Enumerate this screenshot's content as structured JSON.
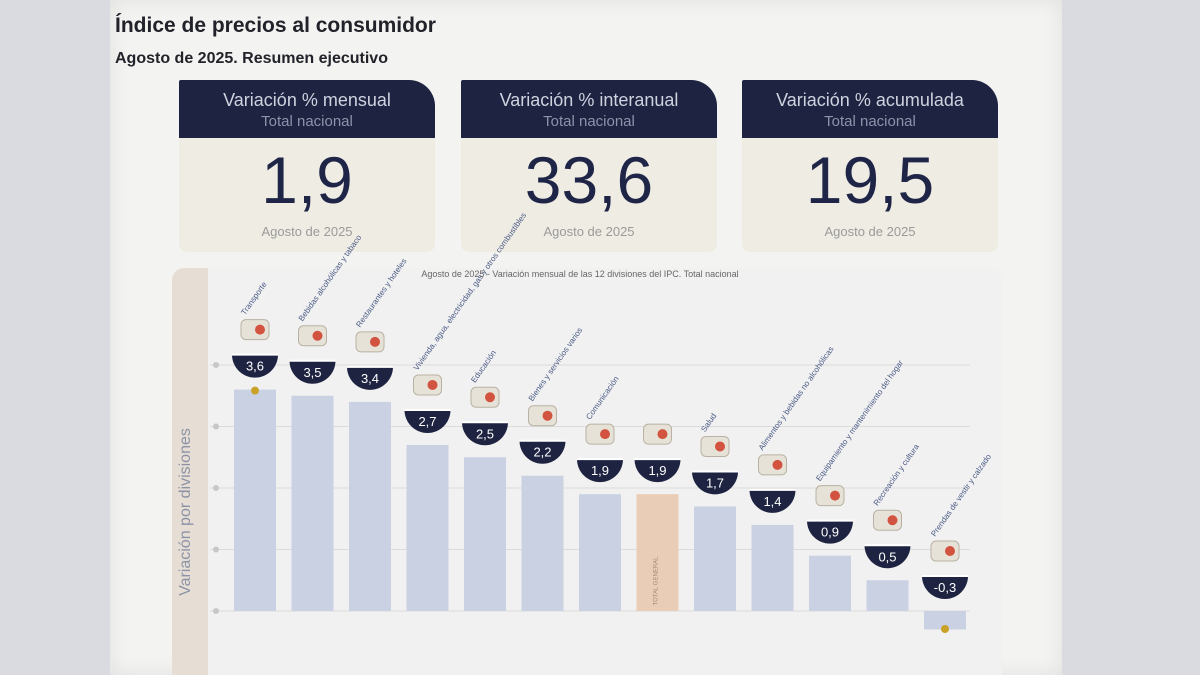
{
  "header": {
    "title": "Índice de precios al consumidor",
    "subtitle": "Agosto de 2025. Resumen ejecutivo"
  },
  "cards": [
    {
      "label": "Variación % mensual",
      "sublabel": "Total nacional",
      "value": "1,9",
      "date": "Agosto de 2025"
    },
    {
      "label": "Variación % interanual",
      "sublabel": "Total nacional",
      "value": "33,6",
      "date": "Agosto de 2025"
    },
    {
      "label": "Variación % acumulada",
      "sublabel": "Total nacional",
      "value": "19,5",
      "date": "Agosto de 2025"
    }
  ],
  "colors": {
    "navy": "#1d2340",
    "bar": "#c9d1e2",
    "highlight_bar": "#e9cdb7",
    "marker": "#c9a227"
  },
  "chart_data": {
    "type": "bar",
    "title": "Agosto de 2025 - Variación mensual de las 12 divisiones del IPC. Total nacional",
    "ylabel": "Variación por divisiones",
    "ylim": [
      -0.5,
      4
    ],
    "yticks": [
      0,
      1,
      2,
      3,
      4
    ],
    "grid": true,
    "categories": [
      "Transporte",
      "Bebidas alcohólicas y tabaco",
      "Restaurantes y hoteles",
      "Vivienda, agua, electricidad, gas y otros combustibles",
      "Educación",
      "Bienes y servicios varios",
      "Comunicación",
      "TOTAL GENERAL",
      "Salud",
      "Alimentos y bebidas no alcohólicas",
      "Equipamiento y mantenimiento del hogar",
      "Recreación y cultura",
      "Prendas de vestir y calzado"
    ],
    "values": [
      3.6,
      3.5,
      3.4,
      2.7,
      2.5,
      2.2,
      1.9,
      1.9,
      1.7,
      1.4,
      0.9,
      0.5,
      -0.3
    ],
    "value_labels": [
      "3,6",
      "3,5",
      "3,4",
      "2,7",
      "2,5",
      "2,2",
      "1,9",
      "1,9",
      "1,7",
      "1,4",
      "0,9",
      "0,5",
      "-0,3"
    ],
    "highlight_index": 7,
    "markers": [
      0,
      12
    ],
    "icons": [
      "bus-icon",
      "drinks-icon",
      "cutlery-icon",
      "house-icon",
      "books-icon",
      "tube-icon",
      "phone-icon",
      "basket-icon",
      "medical-cross-icon",
      "food-plate-icon",
      "appliance-icon",
      "sun-icon",
      "clothing-icon"
    ]
  }
}
